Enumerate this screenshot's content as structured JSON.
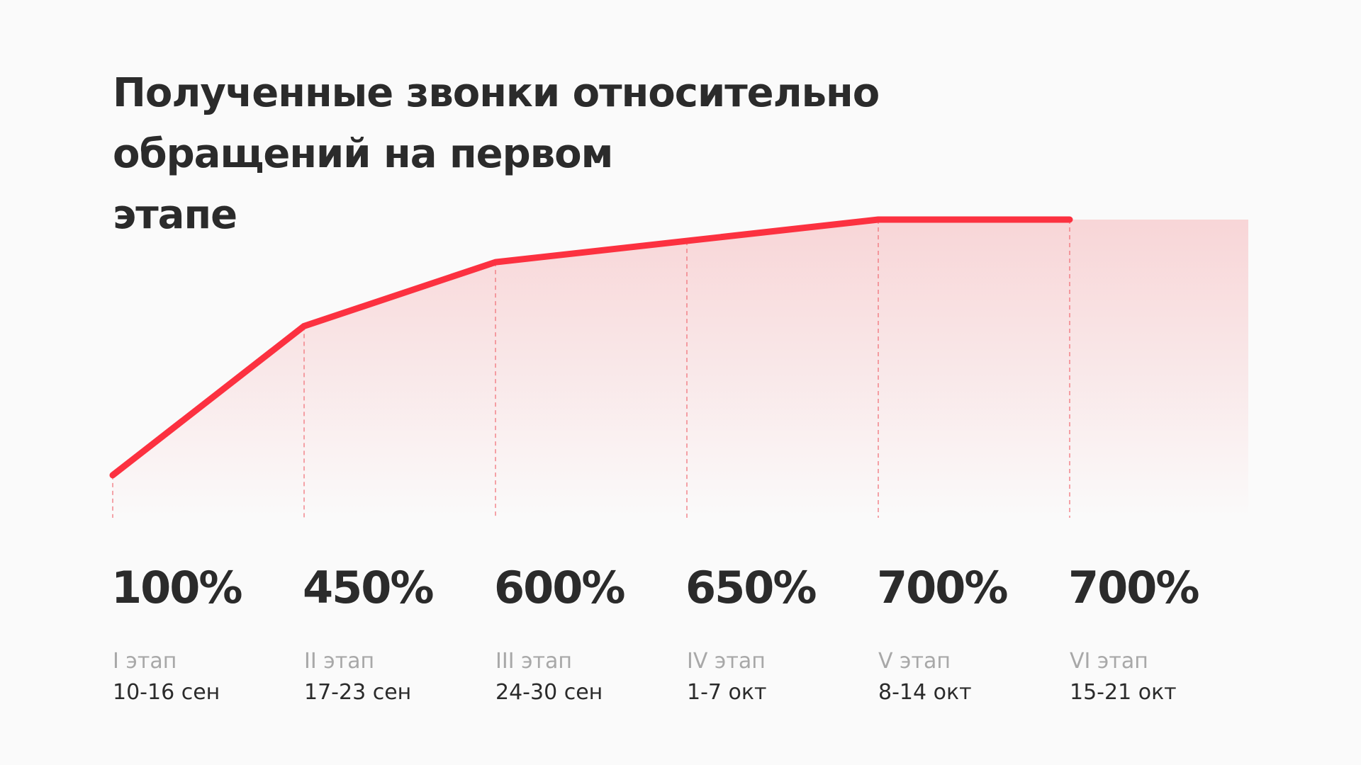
{
  "chart_data": {
    "type": "line",
    "title": [
      "Полученные звонки относительно",
      "обращений на первом",
      "этапе"
    ],
    "stages": [
      "I этап",
      "II этап",
      "III этап",
      "IV этап",
      "V этап",
      "VI этап"
    ],
    "categories": [
      "10-16 сен",
      "17-23 сен",
      "24-30 сен",
      "1-7 окт",
      "8-14 окт",
      "15-21 окт"
    ],
    "series": [
      {
        "color": "#fc3140",
        "values": [
          100,
          450,
          600,
          650,
          700,
          700
        ],
        "value_labels": [
          "100%",
          "450%",
          "600%",
          "650%",
          "700%",
          "700%"
        ]
      }
    ],
    "ylim": [
      0,
      700
    ]
  }
}
